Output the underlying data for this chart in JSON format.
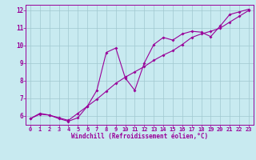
{
  "xlabel": "Windchill (Refroidissement éolien,°C)",
  "xlim": [
    -0.5,
    23.5
  ],
  "ylim": [
    5.5,
    12.3
  ],
  "xticks": [
    0,
    1,
    2,
    3,
    4,
    5,
    6,
    7,
    8,
    9,
    10,
    11,
    12,
    13,
    14,
    15,
    16,
    17,
    18,
    19,
    20,
    21,
    22,
    23
  ],
  "yticks": [
    6,
    7,
    8,
    9,
    10,
    11,
    12
  ],
  "bg_color": "#c8eaf0",
  "line_color": "#990099",
  "grid_color": "#a0c8d0",
  "series1_x": [
    0,
    1,
    2,
    3,
    4,
    5,
    6,
    7,
    8,
    9,
    10,
    11,
    12,
    13,
    14,
    15,
    16,
    17,
    18,
    19,
    20,
    21,
    22,
    23
  ],
  "series1_y": [
    5.85,
    6.15,
    6.05,
    5.85,
    5.7,
    5.9,
    6.55,
    7.45,
    9.6,
    9.85,
    8.15,
    7.45,
    9.0,
    10.05,
    10.45,
    10.3,
    10.65,
    10.8,
    10.75,
    10.5,
    11.1,
    11.75,
    11.9,
    12.05
  ],
  "series2_x": [
    0,
    1,
    2,
    3,
    4,
    5,
    6,
    7,
    8,
    9,
    10,
    11,
    12,
    13,
    14,
    15,
    16,
    17,
    18,
    19,
    20,
    21,
    22,
    23
  ],
  "series2_y": [
    5.85,
    6.1,
    6.05,
    5.9,
    5.75,
    6.15,
    6.55,
    6.95,
    7.4,
    7.85,
    8.2,
    8.5,
    8.8,
    9.15,
    9.45,
    9.7,
    10.05,
    10.45,
    10.65,
    10.8,
    10.98,
    11.32,
    11.65,
    11.98
  ]
}
